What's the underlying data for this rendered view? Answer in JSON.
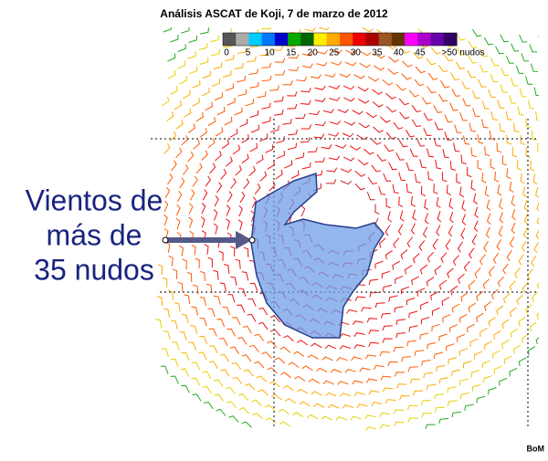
{
  "title": "Análisis ASCAT de Koji, 7 de marzo de 2012",
  "legend": {
    "labels": [
      "0",
      "5",
      "10",
      "15",
      "20",
      "25",
      "30",
      "35",
      "40",
      "45",
      ">50 nudos"
    ],
    "colors": [
      "#555555",
      "#aaaaaa",
      "#00ccff",
      "#0077ff",
      "#0000cc",
      "#00aa00",
      "#006600",
      "#ffee00",
      "#ffaa00",
      "#ff5500",
      "#ee0000",
      "#aa0000",
      "#995522",
      "#663300",
      "#ff00ff",
      "#aa00cc",
      "#6600aa",
      "#330066"
    ]
  },
  "annotation": {
    "lines": [
      "Vientos de",
      "más de",
      "35 nudos"
    ]
  },
  "credit": "BoM"
}
